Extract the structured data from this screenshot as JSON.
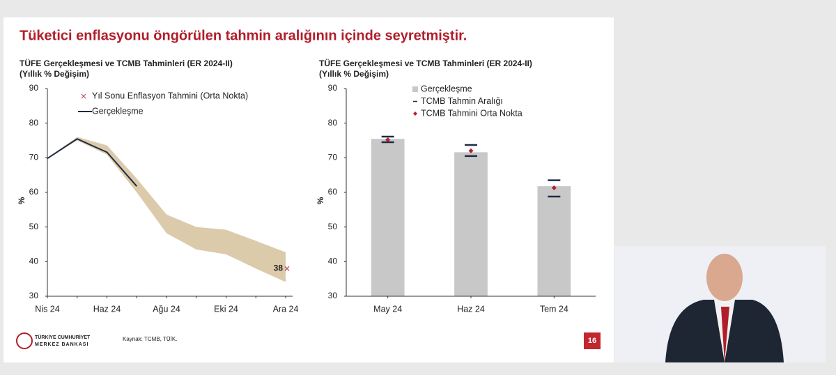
{
  "slide": {
    "title": "Tüketici enflasyonu öngörülen tahmin aralığının içinde seyretmiştir.",
    "logo_line1": "TÜRKİYE CUMHURİYET",
    "logo_line2": "MERKEZ BANKASI",
    "source": "Kaynak: TCMB, TÜİK.",
    "page_number": "16"
  },
  "chart_data": [
    {
      "type": "line",
      "title": "TÜFE Gerçekleşmesi ve TCMB Tahminleri (ER 2024-II)",
      "subtitle": "(Yıllık % Değişim)",
      "ylabel": "%",
      "categories": [
        "Nis 24",
        null,
        "Haz 24",
        null,
        "Ağu 24",
        null,
        "Eki 24",
        null,
        "Ara 24"
      ],
      "band": {
        "color": "#dccbab",
        "upper": [
          70,
          76,
          73.6,
          64,
          53.6,
          50,
          49.2,
          46,
          42.7
        ],
        "lower": [
          70,
          75,
          70.9,
          60,
          48.2,
          43.5,
          42.1,
          38,
          34.1
        ]
      },
      "series": [
        {
          "name": "Yıl Sonu Enflasyon Tahmini (Orta Nokta)",
          "type": "marker",
          "color": "#c0505a",
          "values": [
            null,
            null,
            null,
            null,
            null,
            null,
            null,
            null,
            38
          ]
        },
        {
          "name": "Gerçekleşme",
          "type": "line",
          "color": "#1f2a44",
          "values": [
            69.8,
            75.45,
            71.6,
            61.78,
            null,
            null,
            null,
            null,
            null
          ]
        }
      ],
      "ylim": [
        30,
        90
      ],
      "yticks": [
        30,
        40,
        50,
        60,
        70,
        80,
        90
      ]
    },
    {
      "type": "bar",
      "title": "TÜFE Gerçekleşmesi ve TCMB Tahminleri (ER 2024-II)",
      "subtitle": "(Yıllık % Değişim)",
      "ylabel": "%",
      "categories": [
        "May 24",
        "Haz 24",
        "Tem 24"
      ],
      "series": [
        {
          "name": "Gerçekleşme",
          "type": "bar",
          "color": "#c8c8c8",
          "values": [
            75.45,
            71.6,
            61.78
          ]
        },
        {
          "name": "TCMB Tahmin Aralığı",
          "type": "range",
          "color": "#1f2a44",
          "lower": [
            74.5,
            70.5,
            58.8
          ],
          "upper": [
            76.1,
            73.7,
            63.5
          ]
        },
        {
          "name": "TCMB Tahmini Orta Nokta",
          "type": "point",
          "color": "#b22030",
          "values": [
            75.2,
            72,
            61.3
          ]
        }
      ],
      "ylim": [
        30,
        90
      ],
      "yticks": [
        30,
        40,
        50,
        60,
        70,
        80,
        90
      ]
    }
  ]
}
